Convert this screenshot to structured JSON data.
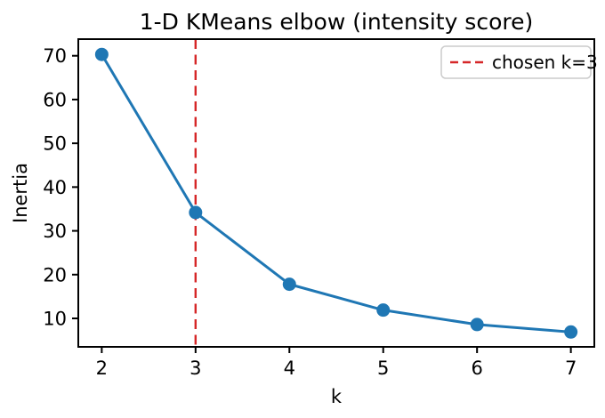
{
  "chart_data": {
    "type": "line",
    "title": "1-D KMeans elbow (intensity score)",
    "xlabel": "k",
    "ylabel": "Inertia",
    "x": [
      2,
      3,
      4,
      5,
      6,
      7
    ],
    "series": [
      {
        "name": "inertia",
        "values": [
          70.3,
          34.2,
          17.8,
          11.9,
          8.6,
          6.9
        ]
      }
    ],
    "xticks": [
      2,
      3,
      4,
      5,
      6,
      7
    ],
    "yticks": [
      10,
      20,
      30,
      40,
      50,
      60,
      70
    ],
    "xlim": [
      1.75,
      7.25
    ],
    "ylim": [
      3.5,
      73.8
    ],
    "grid": false,
    "marker": "o",
    "line_style": "solid-with-markers",
    "vline": {
      "x": 3,
      "style": "dashed",
      "color": "#d62728"
    },
    "legend": {
      "position": "upper right",
      "entries": [
        {
          "label": "chosen k=3",
          "style": "dashed",
          "color": "#d62728"
        }
      ]
    },
    "colors": {
      "line": "#1f77b4",
      "marker": "#1f77b4",
      "vline": "#d62728",
      "frame": "#000000",
      "legend_border": "#cccccc",
      "background": "#ffffff"
    }
  }
}
